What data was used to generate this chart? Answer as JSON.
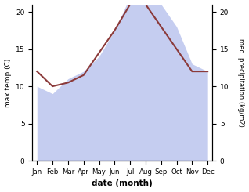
{
  "months": [
    "Jan",
    "Feb",
    "Mar",
    "Apr",
    "May",
    "Jun",
    "Jul",
    "Aug",
    "Sep",
    "Oct",
    "Nov",
    "Dec"
  ],
  "month_positions": [
    0,
    1,
    2,
    3,
    4,
    5,
    6,
    7,
    8,
    9,
    10,
    11
  ],
  "temperature": [
    12.0,
    10.0,
    10.5,
    11.5,
    14.5,
    17.5,
    21.0,
    21.0,
    18.0,
    15.0,
    12.0,
    12.0
  ],
  "precipitation": [
    10.0,
    9.0,
    11.0,
    12.0,
    14.0,
    17.5,
    22.0,
    21.5,
    21.0,
    18.0,
    13.0,
    12.0
  ],
  "temp_color": "#8B3A3A",
  "precip_fill_color": "#c5cdf0",
  "left_ylabel": "max temp (C)",
  "right_ylabel": "med. precipitation (kg/m2)",
  "xlabel": "date (month)",
  "ylim_left": [
    0,
    21
  ],
  "ylim_right": [
    0,
    21
  ],
  "yticks_left": [
    0,
    5,
    10,
    15,
    20
  ],
  "yticks_right": [
    0,
    5,
    10,
    15,
    20
  ],
  "background_color": "#ffffff"
}
